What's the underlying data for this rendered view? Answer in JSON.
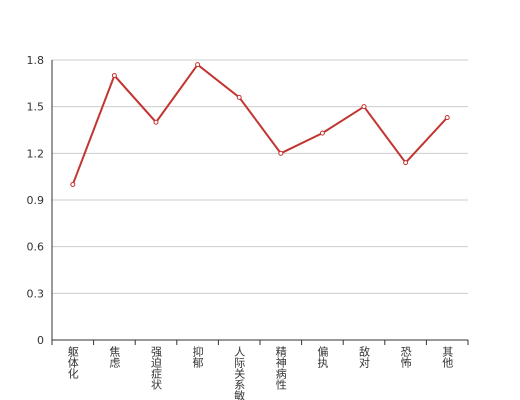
{
  "chart_data": {
    "type": "line",
    "categories": [
      "躯体化",
      "焦虑",
      "强迫症状",
      "抑郁",
      "人际关系敏感",
      "精神病性",
      "偏执",
      "敌对",
      "恐怖",
      "其他"
    ],
    "values": [
      1.0,
      1.7,
      1.4,
      1.77,
      1.56,
      1.2,
      1.33,
      1.5,
      1.14,
      1.43
    ],
    "color": "#c23531",
    "ylim": [
      0,
      1.8
    ],
    "yticks": [
      0,
      0.3,
      0.6,
      0.9,
      1.2,
      1.5,
      1.8
    ],
    "grid": true
  }
}
